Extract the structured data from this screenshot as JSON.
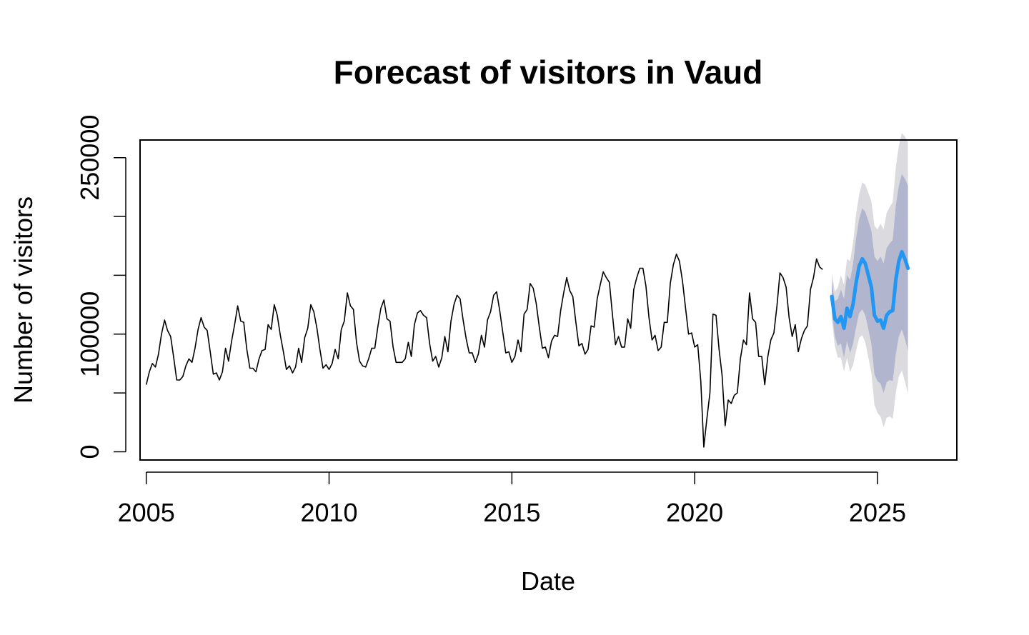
{
  "chart_data": {
    "type": "line",
    "title": "Forecast of visitors in Vaud",
    "xlabel": "Date",
    "ylabel": "Number of visitors",
    "xlim": [
      2004.83,
      2027.17
    ],
    "ylim": [
      -7000,
      265000
    ],
    "x_ticks": [
      2005,
      2010,
      2015,
      2020,
      2025
    ],
    "x_tick_labels": [
      "2005",
      "2010",
      "2015",
      "2020",
      "2025"
    ],
    "y_ticks": [
      0,
      50000,
      100000,
      150000,
      200000,
      250000
    ],
    "y_tick_labels": [
      "0",
      "",
      "100000",
      "",
      "",
      "250000"
    ],
    "grid": false,
    "legend": "none",
    "colors": {
      "history": "#000000",
      "forecast": "#2196f3",
      "band_80": "#b1b5ce",
      "band_95": "#dbdbdf"
    },
    "history": {
      "start": 2005.0,
      "step": 0.0833333,
      "values": [
        57000,
        68000,
        75000,
        72000,
        83000,
        100000,
        112000,
        103000,
        98000,
        80000,
        61000,
        61000,
        64000,
        73000,
        79000,
        76000,
        88000,
        104000,
        114000,
        106000,
        103000,
        85000,
        66000,
        67000,
        61000,
        68000,
        88000,
        77000,
        94000,
        108000,
        124000,
        111000,
        110000,
        87000,
        71000,
        71000,
        68000,
        79000,
        86000,
        87000,
        108000,
        104000,
        125000,
        116000,
        99000,
        85000,
        70000,
        73000,
        67000,
        72000,
        88000,
        76000,
        97000,
        105000,
        125000,
        119000,
        105000,
        87000,
        71000,
        74000,
        70000,
        75000,
        87000,
        79000,
        104000,
        111000,
        135000,
        124000,
        121000,
        93000,
        77000,
        73000,
        72000,
        79000,
        88000,
        88000,
        106000,
        122000,
        129000,
        113000,
        111000,
        89000,
        76000,
        76000,
        76000,
        79000,
        93000,
        81000,
        108000,
        118000,
        120000,
        116000,
        114000,
        92000,
        77000,
        81000,
        72000,
        80000,
        98000,
        85000,
        111000,
        125000,
        133000,
        130000,
        112000,
        96000,
        84000,
        84000,
        76000,
        83000,
        99000,
        89000,
        112000,
        119000,
        133000,
        136000,
        120000,
        102000,
        84000,
        85000,
        76000,
        81000,
        95000,
        85000,
        117000,
        121000,
        143000,
        139000,
        126000,
        106000,
        88000,
        89000,
        80000,
        94000,
        99000,
        98000,
        120000,
        135000,
        148000,
        137000,
        132000,
        110000,
        90000,
        92000,
        83000,
        87000,
        107000,
        106000,
        130000,
        142000,
        153000,
        148000,
        144000,
        117000,
        91000,
        98000,
        89000,
        89000,
        113000,
        105000,
        138000,
        148000,
        156000,
        156000,
        141000,
        114000,
        95000,
        99000,
        86000,
        89000,
        110000,
        110000,
        143000,
        159000,
        168000,
        162000,
        145000,
        122000,
        100000,
        101000,
        89000,
        91000,
        60000,
        4000,
        28000,
        50000,
        117000,
        116000,
        87000,
        65000,
        22000,
        44000,
        41000,
        48000,
        50000,
        79000,
        95000,
        91000,
        135000,
        113000,
        110000,
        81000,
        81000,
        57000,
        81000,
        95000,
        101000,
        124000,
        152000,
        148000,
        140000,
        114000,
        98000,
        108000,
        85000,
        96000,
        103000,
        107000,
        138000,
        148000,
        164000,
        157000,
        155000
      ]
    },
    "forecast": {
      "start": 2023.75,
      "step": 0.0833333,
      "mean": [
        132000,
        113000,
        110000,
        115000,
        105000,
        122000,
        115000,
        126000,
        144000,
        158000,
        164000,
        160000,
        150000,
        140000,
        116000,
        111000,
        112000,
        105000,
        116000,
        119000,
        120000,
        146000,
        162000,
        170000,
        164000,
        156000
      ],
      "lo80": [
        120000,
        98000,
        90000,
        92000,
        80000,
        94000,
        84000,
        92000,
        106000,
        118000,
        121000,
        116000,
        104000,
        92000,
        66000,
        60000,
        58000,
        50000,
        59000,
        61000,
        60000,
        83000,
        98000,
        104000,
        96000,
        86000
      ],
      "hi80": [
        145000,
        128000,
        130000,
        138000,
        130000,
        150000,
        146000,
        160000,
        182000,
        198000,
        207000,
        204000,
        196000,
        188000,
        166000,
        162000,
        166000,
        160000,
        173000,
        177000,
        180000,
        209000,
        226000,
        236000,
        232000,
        226000
      ],
      "lo95": [
        113000,
        90000,
        80000,
        80000,
        68000,
        80000,
        68000,
        74000,
        86000,
        97000,
        99000,
        93000,
        80000,
        67000,
        40000,
        33000,
        30000,
        21000,
        29000,
        30000,
        28000,
        50000,
        64000,
        69000,
        60000,
        49000
      ],
      "hi95": [
        152000,
        136000,
        140000,
        150000,
        142000,
        164000,
        162000,
        178000,
        202000,
        219000,
        229000,
        227000,
        220000,
        213000,
        192000,
        189000,
        194000,
        189000,
        203000,
        208000,
        212000,
        242000,
        260000,
        271000,
        268000,
        263000
      ]
    }
  }
}
